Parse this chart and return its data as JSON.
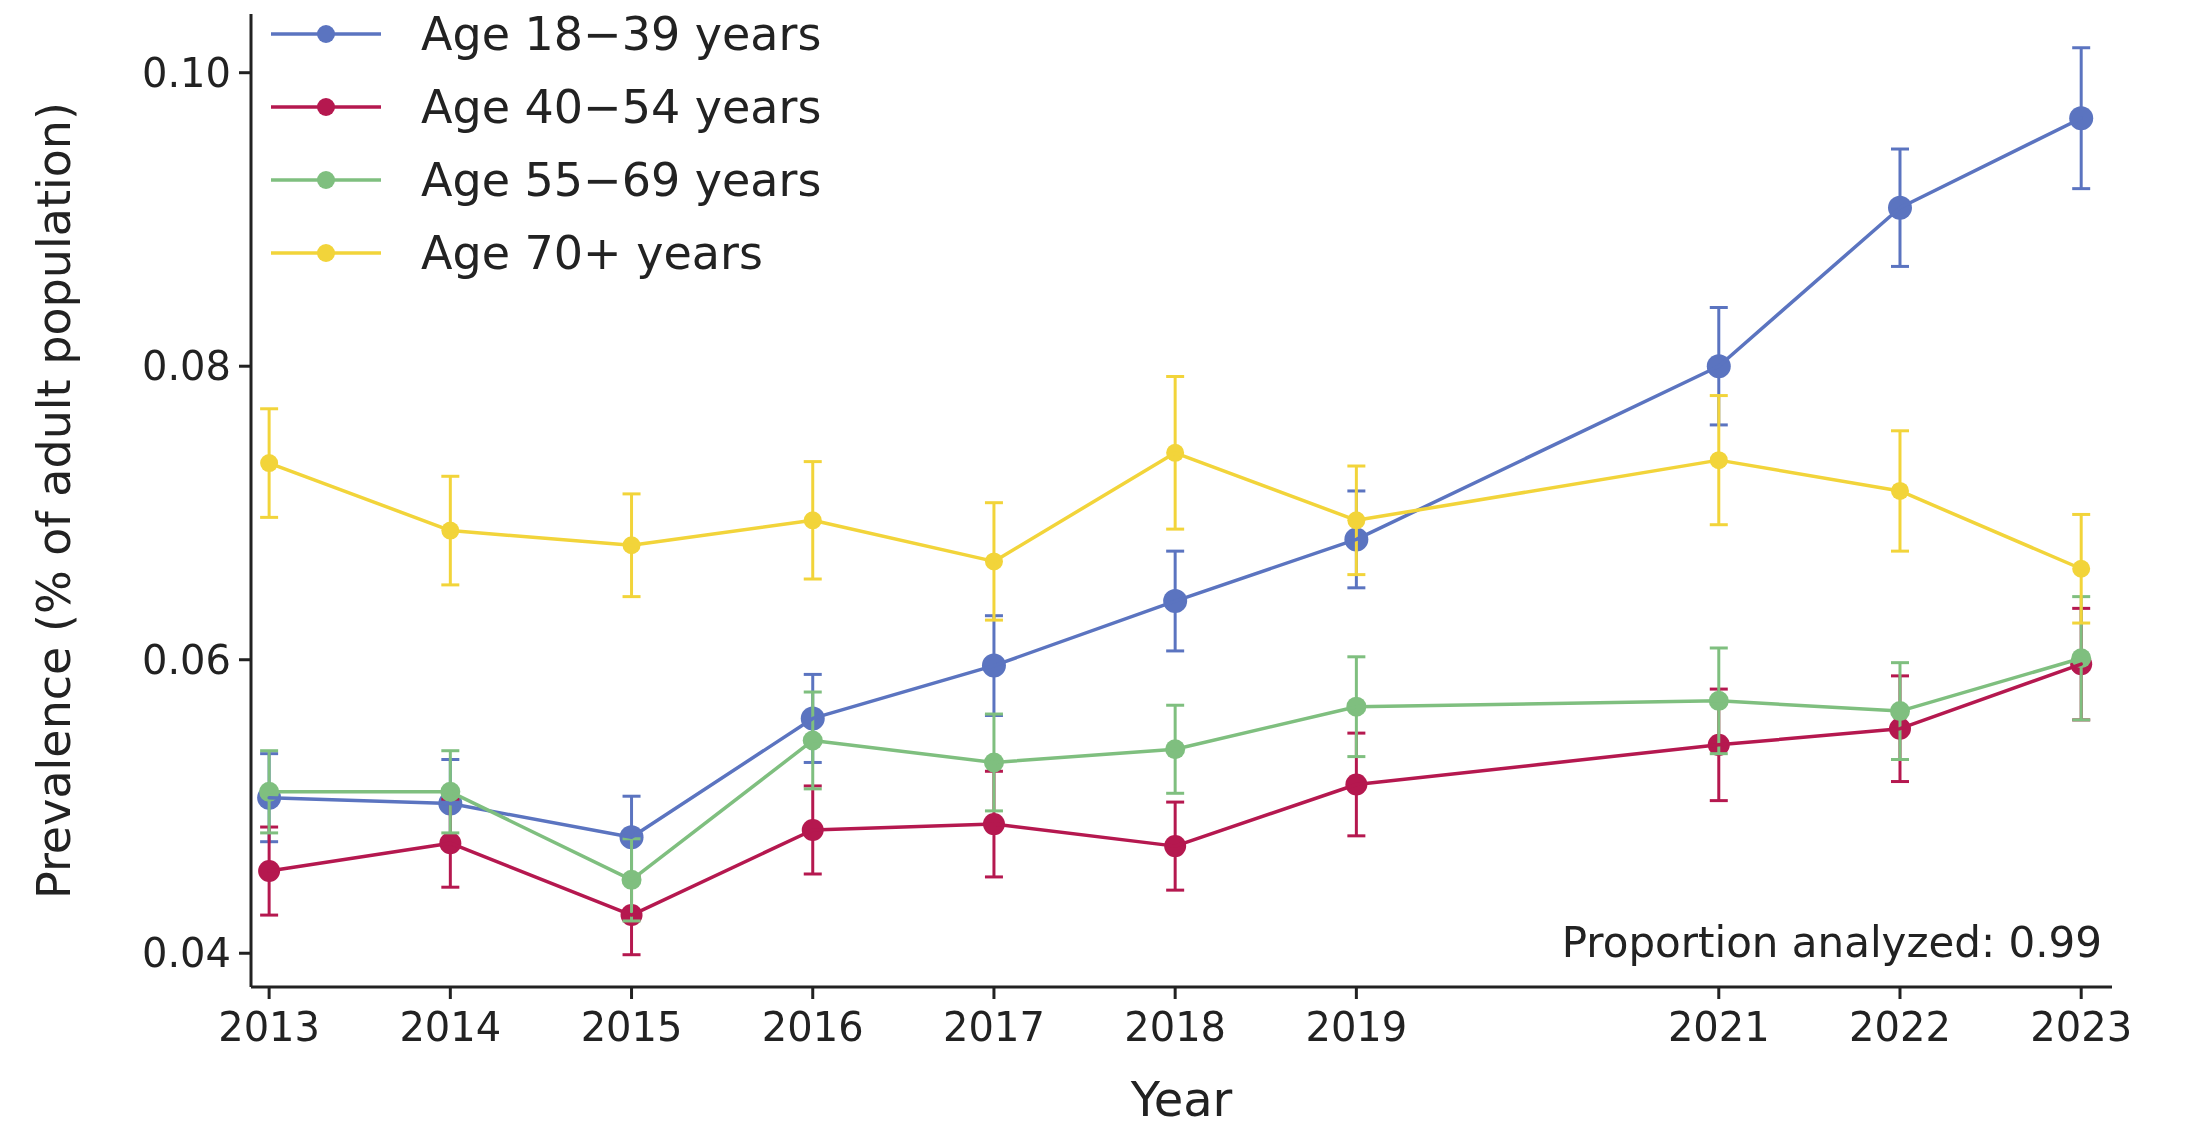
{
  "chart_data": {
    "type": "line",
    "xlabel": "Year",
    "ylabel": "Prevalence (% of adult population)",
    "x": [
      2013,
      2014,
      2015,
      2016,
      2017,
      2018,
      2019,
      2021,
      2022,
      2023
    ],
    "xlim": [
      2012.9,
      2023.17
    ],
    "xticks": [
      2013,
      2014,
      2015,
      2016,
      2017,
      2018,
      2019,
      2021,
      2022,
      2023
    ],
    "ylim": [
      0.0377,
      0.104
    ],
    "yticks": [
      {
        "value": 0.04,
        "label": "0.04"
      },
      {
        "value": 0.06,
        "label": "0.06"
      },
      {
        "value": 0.08,
        "label": "0.08"
      },
      {
        "value": 0.1,
        "label": "0.10"
      }
    ],
    "grid": false,
    "legend": "top left",
    "marker": "circle",
    "line_style": "solid",
    "annotations": [
      "Proportion analyzed: 0.99"
    ],
    "series": [
      {
        "name": "Age 18−39 years",
        "color": "#5b74c0",
        "values": [
          0.0506,
          0.0502,
          0.0479,
          0.056,
          0.0596,
          0.064,
          0.0682,
          0.08,
          0.0908,
          0.0969
        ],
        "errors": [
          0.003,
          0.003,
          0.0028,
          0.003,
          0.0034,
          0.0034,
          0.0033,
          0.004,
          0.004,
          0.0048
        ]
      },
      {
        "name": "Age 40−54 years",
        "color": "#b5184f",
        "values": [
          0.0456,
          0.0475,
          0.0426,
          0.0484,
          0.0488,
          0.0473,
          0.0515,
          0.0542,
          0.0553,
          0.0597
        ],
        "errors": [
          0.003,
          0.003,
          0.0027,
          0.003,
          0.0036,
          0.003,
          0.0035,
          0.0038,
          0.0036,
          0.0038
        ]
      },
      {
        "name": "Age 55−69 years",
        "color": "#7fbf7f",
        "values": [
          0.051,
          0.051,
          0.045,
          0.0545,
          0.053,
          0.0539,
          0.0568,
          0.0572,
          0.0565,
          0.0601
        ],
        "errors": [
          0.0028,
          0.0028,
          0.0028,
          0.0033,
          0.0033,
          0.003,
          0.0034,
          0.0036,
          0.0033,
          0.0042
        ]
      },
      {
        "name": "Age 70+ years",
        "color": "#f2d43a",
        "values": [
          0.0734,
          0.0688,
          0.0678,
          0.0695,
          0.0667,
          0.0741,
          0.0695,
          0.0736,
          0.0715,
          0.0662
        ],
        "errors": [
          0.0037,
          0.0037,
          0.0035,
          0.004,
          0.004,
          0.0052,
          0.0037,
          0.0044,
          0.0041,
          0.0037
        ]
      }
    ]
  }
}
